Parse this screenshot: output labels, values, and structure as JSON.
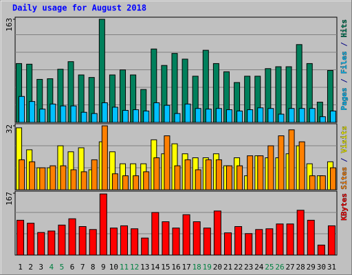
{
  "title": "Daily usage for August 2018",
  "chart_data": [
    {
      "type": "bar",
      "categories": [
        "1",
        "2",
        "3",
        "4",
        "5",
        "6",
        "7",
        "8",
        "9",
        "10",
        "11",
        "12",
        "13",
        "14",
        "15",
        "16",
        "17",
        "18",
        "19",
        "20",
        "21",
        "22",
        "23",
        "24",
        "25",
        "26",
        "27",
        "28",
        "29",
        "30",
        "31"
      ],
      "category_colors": [
        "#000000",
        "#000000",
        "#000000",
        "#008040",
        "#008040",
        "#000000",
        "#000000",
        "#000000",
        "#000000",
        "#000000",
        "#008040",
        "#008040",
        "#000000",
        "#000000",
        "#000000",
        "#000000",
        "#000000",
        "#008040",
        "#008040",
        "#000000",
        "#000000",
        "#000000",
        "#000000",
        "#000000",
        "#008040",
        "#008040",
        "#000000",
        "#000000",
        "#000000",
        "#000000",
        "#000000"
      ],
      "ylim": [
        0,
        163
      ],
      "yticks": [
        163
      ],
      "legend_extra": {
        "name": "Pages",
        "color": "#00c0ff"
      },
      "legend_separator": " / ",
      "series": [
        {
          "name": "Hits",
          "color": "#00805c",
          "values": [
            93,
            92,
            68,
            69,
            84,
            96,
            75,
            71,
            163,
            75,
            83,
            75,
            52,
            116,
            90,
            109,
            100,
            73,
            114,
            93,
            80,
            63,
            73,
            73,
            85,
            88,
            88,
            123,
            93,
            32,
            82
          ]
        },
        {
          "name": "Files",
          "color": "#00c0ff",
          "values": [
            41,
            33,
            21,
            29,
            26,
            26,
            16,
            14,
            31,
            24,
            19,
            20,
            18,
            31,
            27,
            14,
            29,
            22,
            21,
            22,
            20,
            18,
            20,
            23,
            22,
            13,
            22,
            22,
            22,
            9,
            18
          ]
        }
      ]
    },
    {
      "type": "bar",
      "ylim": [
        0,
        32
      ],
      "yticks": [
        32
      ],
      "legend_separator": " / ",
      "series": [
        {
          "name": "Visits",
          "color": "#ffff00",
          "values": [
            31,
            20,
            11,
            11,
            22,
            19,
            21,
            10,
            24,
            19,
            13,
            13,
            13,
            25,
            18,
            23,
            18,
            16,
            16,
            18,
            12,
            16,
            7,
            17,
            16,
            16,
            18,
            22,
            13,
            7,
            14
          ]
        },
        {
          "name": "Sites",
          "color": "#ff8000",
          "values": [
            15,
            14,
            11,
            12,
            12,
            10,
            9,
            15,
            32,
            8,
            7,
            7,
            9,
            16,
            27,
            12,
            15,
            10,
            15,
            15,
            12,
            12,
            17,
            17,
            22,
            27,
            30,
            24,
            7,
            7,
            11
          ]
        }
      ]
    },
    {
      "type": "bar",
      "ylim": [
        0,
        167
      ],
      "yticks": [
        167
      ],
      "series": [
        {
          "name": "KBytes",
          "color": "#ff0000",
          "values": [
            94,
            86,
            61,
            65,
            81,
            98,
            77,
            69,
            165,
            73,
            79,
            71,
            46,
            115,
            90,
            73,
            109,
            90,
            73,
            119,
            60,
            77,
            58,
            69,
            71,
            84,
            84,
            121,
            94,
            27,
            79
          ]
        }
      ]
    }
  ]
}
